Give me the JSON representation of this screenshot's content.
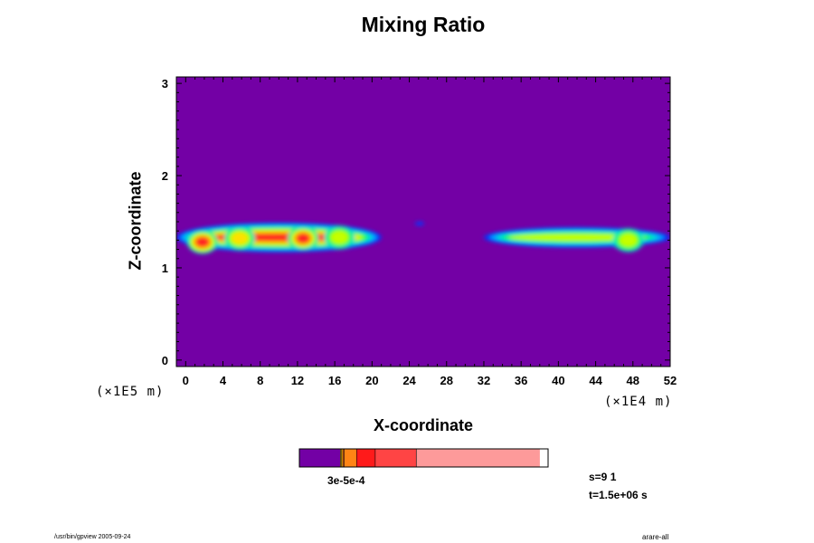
{
  "chart_data": {
    "type": "heatmap",
    "title": "Mixing Ratio",
    "xlabel": "X-coordinate",
    "ylabel": "Z-coordinate",
    "x_unit": "(×1E4 m)",
    "y_unit": "(×1E5 m)",
    "xlim": [
      -1,
      52
    ],
    "ylim": [
      -0.07,
      3.07
    ],
    "x_ticks": [
      "0",
      "4",
      "8",
      "12",
      "16",
      "20",
      "24",
      "28",
      "32",
      "36",
      "40",
      "44",
      "48",
      "52"
    ],
    "y_ticks": [
      "0",
      "1",
      "2",
      "3"
    ],
    "background_color": "#7300a5",
    "plumes": [
      {
        "x_start": -1,
        "x_end": 21,
        "z_center": 1.33,
        "thickness": 0.32,
        "peak_level": 8
      },
      {
        "x_start": 32,
        "x_end": 52,
        "z_center": 1.33,
        "thickness": 0.22,
        "peak_level": 5
      },
      {
        "x_start": 24.6,
        "x_end": 25.6,
        "z_center": 1.48,
        "thickness": 0.04,
        "peak_level": 1
      }
    ],
    "hot_spots": [
      {
        "x": 1.8,
        "z": 1.28,
        "level": 8
      },
      {
        "x": 5.8,
        "z": 1.32,
        "level": 6
      },
      {
        "x": 12.6,
        "z": 1.32,
        "level": 8
      },
      {
        "x": 16.5,
        "z": 1.33,
        "level": 5
      },
      {
        "x": 47.5,
        "z": 1.3,
        "level": 5
      }
    ],
    "level_colors": [
      "#7300a5",
      "#0039ff",
      "#00a8ff",
      "#00e5c5",
      "#19ff19",
      "#c5ff00",
      "#ffe000",
      "#ff7f00",
      "#ff2020",
      "#ff4a4a"
    ],
    "colorbar": {
      "segments": [
        {
          "color": "#7300a5",
          "value": 0.165
        },
        {
          "color": "#ffd21e",
          "value": 0.005
        },
        {
          "color": "#ffa700",
          "value": 0.005
        },
        {
          "color": "#ff6a1d",
          "value": 0.005
        },
        {
          "color": "#ff8415",
          "value": 0.05
        },
        {
          "color": "#ff1a1a",
          "value": 0.075
        },
        {
          "color": "#ff4444",
          "value": 0.165
        },
        {
          "color": "#fd9a9a",
          "value": 0.495
        }
      ],
      "label_text": "3e-5e-4"
    },
    "scale_s": "s=9 1",
    "scale_t": "t=1.5e+06 s"
  },
  "footer_left": "/usr/bin/gpview 2005-09-24",
  "footer_right": "arare-all"
}
